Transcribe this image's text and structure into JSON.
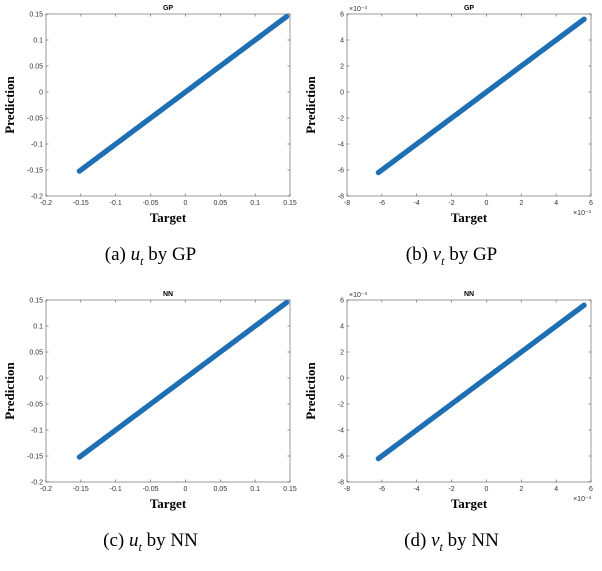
{
  "chart_data": [
    {
      "id": "a",
      "type": "scatter",
      "title": "GP",
      "xlabel": "Target",
      "ylabel": "Prediction",
      "xlim": [
        -0.2,
        0.15
      ],
      "ylim": [
        -0.2,
        0.15
      ],
      "xticks": [
        "-0.2",
        "-0.15",
        "-0.1",
        "-0.05",
        "0",
        "0.05",
        "0.1",
        "0.15"
      ],
      "yticks": [
        "-0.2",
        "-0.15",
        "-0.1",
        "-0.05",
        "0",
        "0.05",
        "0.1",
        "0.15"
      ],
      "exponent": "",
      "series": [
        {
          "x": [
            -0.152,
            -0.1,
            -0.05,
            0,
            0.05,
            0.1,
            0.145
          ],
          "y": [
            -0.152,
            -0.1,
            -0.05,
            0,
            0.05,
            0.1,
            0.145
          ]
        }
      ],
      "color": "#1f6fb4",
      "caption_var": "u",
      "caption_sub": "t",
      "caption_text": "by GP",
      "caption_label": "(a)"
    },
    {
      "id": "b",
      "type": "scatter",
      "title": "GP",
      "xlabel": "Target",
      "ylabel": "Prediction",
      "xlim": [
        -8,
        6
      ],
      "ylim": [
        -8,
        6
      ],
      "xticks": [
        "-8",
        "-6",
        "-4",
        "-2",
        "0",
        "2",
        "4",
        "6"
      ],
      "yticks": [
        "-8",
        "-6",
        "-4",
        "-2",
        "0",
        "2",
        "4",
        "6"
      ],
      "exponent": "×10⁻³",
      "series": [
        {
          "x": [
            -6.2,
            -4,
            -2,
            0,
            2,
            4,
            5.6
          ],
          "y": [
            -6.2,
            -4,
            -2,
            0,
            2,
            4,
            5.6
          ]
        }
      ],
      "color": "#1f6fb4",
      "caption_var": "v",
      "caption_sub": "t",
      "caption_text": "by GP",
      "caption_label": "(b)"
    },
    {
      "id": "c",
      "type": "scatter",
      "title": "NN",
      "xlabel": "Target",
      "ylabel": "Prediction",
      "xlim": [
        -0.2,
        0.15
      ],
      "ylim": [
        -0.2,
        0.15
      ],
      "xticks": [
        "-0.2",
        "-0.15",
        "-0.1",
        "-0.05",
        "0",
        "0.05",
        "0.1",
        "0.15"
      ],
      "yticks": [
        "-0.2",
        "-0.15",
        "-0.1",
        "-0.05",
        "0",
        "0.05",
        "0.1",
        "0.15"
      ],
      "exponent": "",
      "series": [
        {
          "x": [
            -0.152,
            -0.1,
            -0.05,
            0,
            0.05,
            0.1,
            0.145
          ],
          "y": [
            -0.152,
            -0.1,
            -0.05,
            0,
            0.05,
            0.1,
            0.145
          ]
        }
      ],
      "color": "#1f6fb4",
      "caption_var": "u",
      "caption_sub": "t",
      "caption_text": "by NN",
      "caption_label": "(c)"
    },
    {
      "id": "d",
      "type": "scatter",
      "title": "NN",
      "xlabel": "Target",
      "ylabel": "Prediction",
      "xlim": [
        -8,
        6
      ],
      "ylim": [
        -8,
        6
      ],
      "xticks": [
        "-8",
        "-6",
        "-4",
        "-2",
        "0",
        "2",
        "4",
        "6"
      ],
      "yticks": [
        "-8",
        "-6",
        "-4",
        "-2",
        "0",
        "2",
        "4",
        "6"
      ],
      "exponent": "×10⁻³",
      "series": [
        {
          "x": [
            -6.2,
            -4,
            -2,
            0,
            2,
            4,
            5.6
          ],
          "y": [
            -6.2,
            -4,
            -2,
            0,
            2,
            4,
            5.6
          ]
        }
      ],
      "color": "#1f6fb4",
      "caption_var": "v",
      "caption_sub": "t",
      "caption_text": "by NN",
      "caption_label": "(d)"
    }
  ]
}
